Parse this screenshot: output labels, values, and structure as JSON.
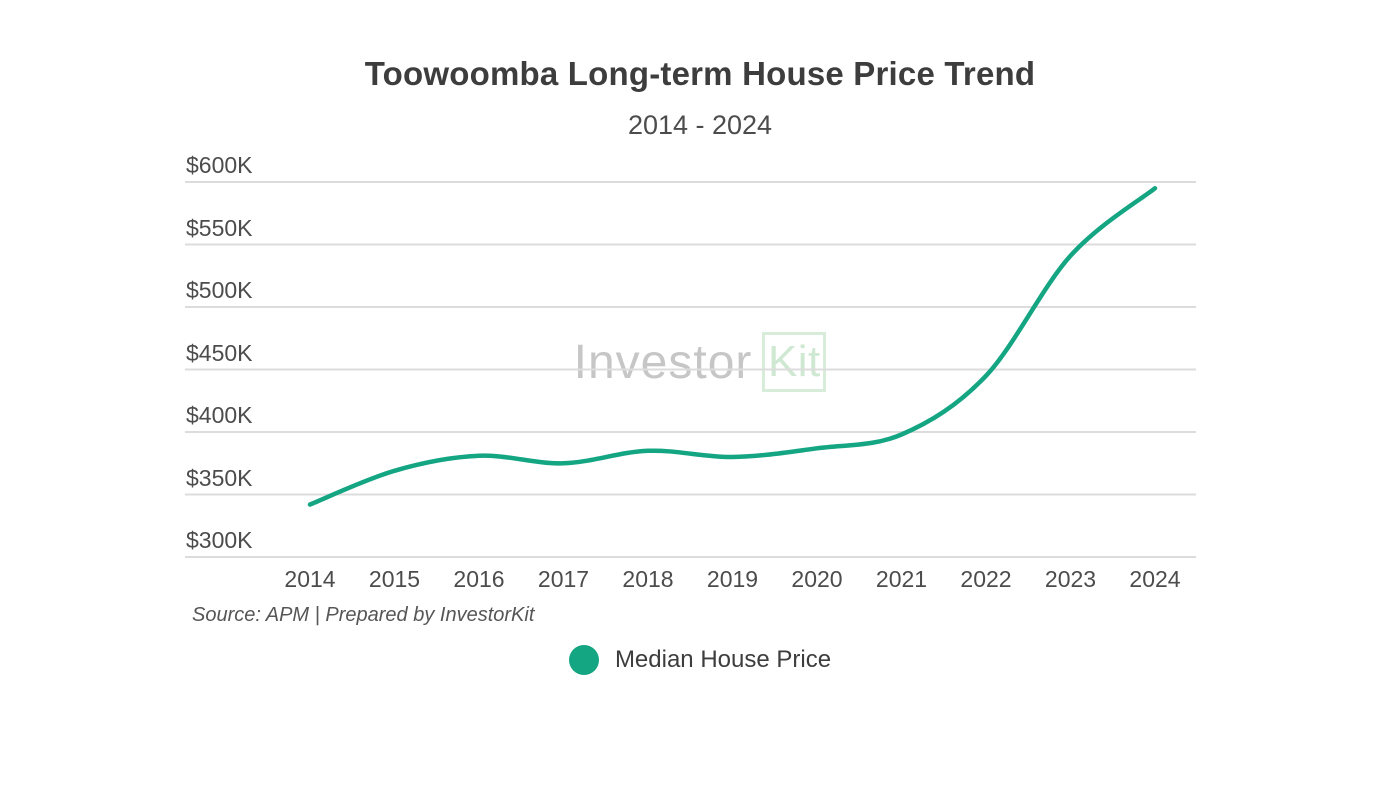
{
  "header": {
    "title": "Toowoomba Long-term House Price Trend",
    "subtitle": "2014 - 2024"
  },
  "watermark": {
    "part1": "Investor",
    "part2": "Kit"
  },
  "source_note": "Source: APM | Prepared by InvestorKit",
  "legend": {
    "label": "Median House Price"
  },
  "colors": {
    "accent_green": "#14a583",
    "gridline": "#dcdcdc",
    "title_text": "#3d3d3d",
    "axis_text": "#4c4c4c",
    "watermark_gray": "#c6c6c6",
    "watermark_green": "#cfe8d2"
  },
  "chart_data": {
    "type": "line",
    "title": "Toowoomba Long-term House Price Trend",
    "subtitle": "2014 - 2024",
    "x": [
      2014,
      2015,
      2016,
      2017,
      2018,
      2019,
      2020,
      2021,
      2022,
      2023,
      2024
    ],
    "series": [
      {
        "name": "Median House Price",
        "color": "#14a583",
        "values_k_aud": [
          342,
          369,
          381,
          375,
          385,
          380,
          387,
          398,
          445,
          541,
          595
        ]
      }
    ],
    "ylabel_unit": "AUD thousands",
    "ylim_k": [
      300,
      600
    ],
    "yticks_k": [
      300,
      350,
      400,
      450,
      500,
      550,
      600
    ],
    "ytick_prefix": "$",
    "ytick_suffix": "K",
    "grid": "horizontal",
    "legend_position": "bottom",
    "source": "Source: APM | Prepared by InvestorKit"
  }
}
